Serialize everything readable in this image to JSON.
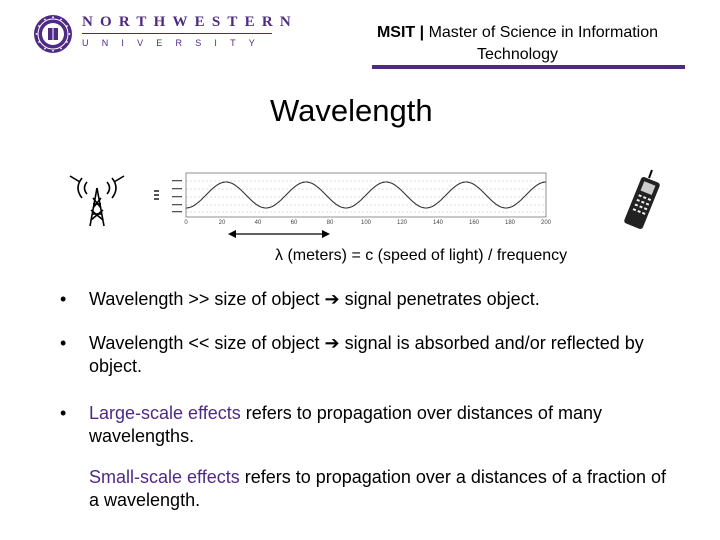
{
  "header": {
    "university_name": "NORTHWESTERN",
    "university_sub": "UNIVERSITY",
    "program_abbrev": "MSIT",
    "separator": "|",
    "program_name": "Master of Science in Information Technology"
  },
  "slide": {
    "title": "Wavelength",
    "formula": "λ (meters) = c (speed of light) / frequency"
  },
  "bullets": [
    {
      "marker": "•",
      "part1": "Wavelength >> size of object ",
      "arrow": "➔",
      "part2": " signal penetrates object."
    },
    {
      "marker": "•",
      "part1": "Wavelength << size of object ",
      "arrow": "➔",
      "part2": " signal is absorbed and/or reflected by object."
    },
    {
      "marker": "•",
      "highlight": "Large-scale effects",
      "rest": " refers to propagation over distances of many wavelengths."
    },
    {
      "highlight": "Small-scale effects",
      "rest": " refers to propagation over a distances of a fraction of a wavelength."
    }
  ],
  "figure": {
    "x_tick_labels": [
      "0",
      "20",
      "40",
      "60",
      "80",
      "100",
      "120",
      "140",
      "160",
      "180",
      "200"
    ],
    "colors": {
      "brand": "#4e2a84",
      "highlight": "#4e2a84"
    }
  }
}
